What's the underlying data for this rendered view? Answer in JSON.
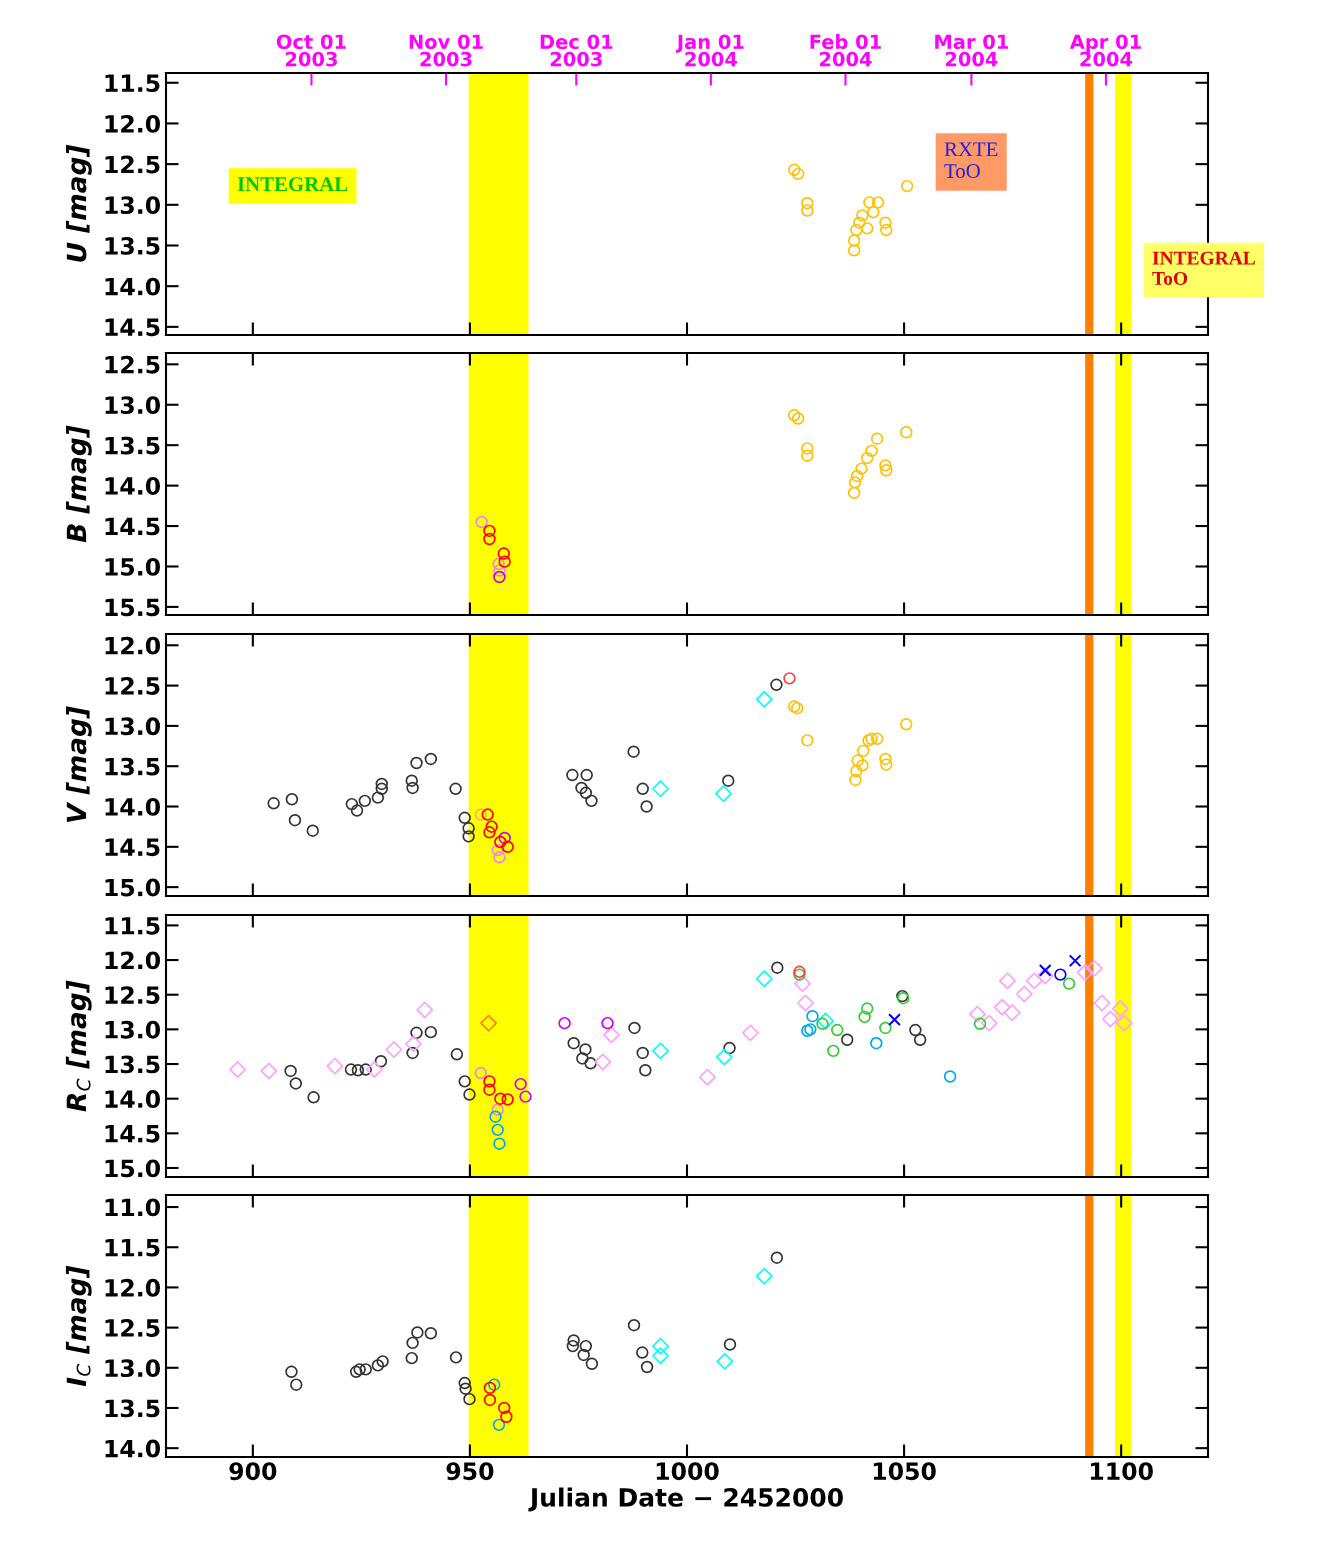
{
  "chart_data": [
    {
      "type": "scatter",
      "ylabel": "U [mag]",
      "xlim": [
        880,
        1120
      ],
      "xticks": [
        900,
        950,
        1000,
        1050,
        1100
      ],
      "ylim": [
        14.6,
        11.38
      ],
      "yticks": [
        11.5,
        {
          "value": 12,
          "label": "12.0"
        },
        12.5,
        {
          "value": 13,
          "label": "13.0"
        },
        13.5,
        {
          "value": 14,
          "label": "14.0"
        },
        14.5
      ],
      "tick_labels": "y",
      "x2lim": [
        "2003-08-28T12:00",
        "2004-04-24T12:00"
      ],
      "x2ticks": [
        {
          "value": "2003-10-01",
          "label": "Oct 01\n2003"
        },
        {
          "value": "2003-11-01",
          "label": "Nov 01\n2003"
        },
        {
          "value": "2003-12-01",
          "label": "Dec 01\n2003"
        },
        {
          "value": "2004-01-01",
          "label": "Jan 01\n2004"
        },
        {
          "value": "2004-02-01",
          "label": "Feb 01\n2004"
        },
        {
          "value": "2004-03-01",
          "label": "Mar 01\n2004"
        },
        {
          "value": "2004-04-01",
          "label": "Apr 01\n2004"
        }
      ],
      "annotations": [
        "INTEGRAL",
        "RXTE\nToO",
        "INTEGRAL\nToO"
      ],
      "bands": [
        {
          "axis": "x",
          "from": 949.7,
          "to": 963.5,
          "color": "#ffff00"
        },
        {
          "axis": "x",
          "from": 1091.7,
          "to": 1093.6,
          "color": "#ff7f00"
        },
        {
          "axis": "x",
          "from": 1098.6,
          "to": 1102.3,
          "color": "#ffff00"
        }
      ],
      "series": [
        {
          "color": "#ffc000",
          "marker": "circle",
          "x": [
            1024.7,
            1025.6,
            1027.7,
            1027.7,
            1038.5,
            1038.5,
            1039.0,
            1039.7,
            1040.4,
            1041.5,
            1042.0,
            1042.9,
            1044.0,
            1045.7,
            1045.9,
            1050.7
          ],
          "values": [
            12.57,
            12.62,
            12.98,
            13.07,
            13.56,
            13.44,
            13.31,
            13.22,
            13.13,
            13.29,
            12.97,
            13.09,
            12.97,
            13.22,
            13.31,
            12.77
          ]
        }
      ]
    },
    {
      "type": "scatter",
      "ylabel": "B [mag]",
      "xlim": [
        880,
        1120
      ],
      "xticks": [
        900,
        950,
        1000,
        1050,
        1100
      ],
      "ylim": [
        15.6,
        12.36
      ],
      "yticks": [
        12.5,
        {
          "value": 13,
          "label": "13.0"
        },
        13.5,
        {
          "value": 14,
          "label": "14.0"
        },
        14.5,
        {
          "value": 15,
          "label": "15.0"
        },
        15.5
      ],
      "tick_labels": "y",
      "bands": [
        {
          "axis": "x",
          "from": 949.7,
          "to": 963.5,
          "color": "#ffff00"
        },
        {
          "axis": "x",
          "from": 1091.7,
          "to": 1093.6,
          "color": "#ff7f00"
        },
        {
          "axis": "x",
          "from": 1098.6,
          "to": 1102.3,
          "color": "#ffff00"
        }
      ],
      "series": [
        {
          "color": "#ffc000",
          "marker": "circle",
          "x": [
            1024.7,
            1025.6,
            1027.7,
            1027.7,
            1038.5,
            1038.7,
            1039.2,
            1040.2,
            1041.5,
            1042.5,
            1043.8,
            1045.7,
            1045.9,
            1050.5
          ],
          "values": [
            13.13,
            13.17,
            13.54,
            13.63,
            14.09,
            13.96,
            13.88,
            13.79,
            13.66,
            13.57,
            13.42,
            13.75,
            13.81,
            13.34
          ]
        },
        {
          "color": "#ee82ee",
          "marker": "circle",
          "x": [
            952.7,
            956.6,
            956.8
          ],
          "values": [
            14.45,
            14.97,
            15.05
          ]
        },
        {
          "color": "#ff0000",
          "marker": "circle",
          "x": [
            954.5,
            954.5,
            957.8,
            958.0
          ],
          "values": [
            14.56,
            14.66,
            14.84,
            14.94
          ]
        },
        {
          "color": "#cc00cc",
          "marker": "circle",
          "x": [
            956.8
          ],
          "values": [
            15.13
          ]
        }
      ]
    },
    {
      "type": "scatter",
      "ylabel": "V [mag]",
      "xlim": [
        880,
        1120
      ],
      "xticks": [
        900,
        950,
        1000,
        1050,
        1100
      ],
      "ylim": [
        15.11,
        11.86
      ],
      "yticks": [
        {
          "value": 12,
          "label": "12.0"
        },
        12.5,
        {
          "value": 13,
          "label": "13.0"
        },
        13.5,
        {
          "value": 14,
          "label": "14.0"
        },
        14.5,
        {
          "value": 15,
          "label": "15.0"
        }
      ],
      "tick_labels": "y",
      "bands": [
        {
          "axis": "x",
          "from": 949.7,
          "to": 963.5,
          "color": "#ffff00"
        },
        {
          "axis": "x",
          "from": 1091.7,
          "to": 1093.6,
          "color": "#ff7f00"
        },
        {
          "axis": "x",
          "from": 1098.6,
          "to": 1102.3,
          "color": "#ffff00"
        }
      ],
      "series": [
        {
          "color": "#333333",
          "marker": "circle",
          "x": [
            904.8,
            909.0,
            909.7,
            913.8,
            922.8,
            924.0,
            925.8,
            928.8,
            929.7,
            929.7,
            936.6,
            936.8,
            937.7,
            941.0,
            946.7,
            948.8,
            949.7,
            949.7,
            973.6,
            976.9,
            975.7,
            976.7,
            978.0,
            987.7,
            989.8,
            990.7,
            1009.5,
            1020.6
          ],
          "values": [
            13.96,
            13.91,
            14.17,
            14.3,
            13.97,
            14.05,
            13.93,
            13.89,
            13.78,
            13.72,
            13.68,
            13.77,
            13.46,
            13.41,
            13.78,
            14.14,
            14.37,
            14.27,
            13.61,
            13.61,
            13.77,
            13.83,
            13.93,
            13.32,
            13.78,
            14.0,
            13.68,
            12.49
          ]
        },
        {
          "color": "#00ffff",
          "marker": "diamond",
          "x": [
            993.9,
            1008.4,
            1017.8
          ],
          "values": [
            13.78,
            13.84,
            12.67
          ]
        },
        {
          "color": "#ff4040",
          "marker": "circle",
          "x": [
            1023.6
          ],
          "values": [
            12.41
          ]
        },
        {
          "color": "#ffc000",
          "marker": "circle",
          "x": [
            1024.7,
            1025.4,
            1027.7,
            1038.8,
            1039.0,
            1039.3,
            1040.4,
            1040.6,
            1041.8,
            1042.5,
            1043.8,
            1045.7,
            1045.9,
            1050.5
          ],
          "values": [
            12.76,
            12.78,
            13.18,
            13.67,
            13.56,
            13.43,
            13.49,
            13.31,
            13.18,
            13.16,
            13.16,
            13.41,
            13.48,
            12.98
          ]
        },
        {
          "color": "#ffaa80",
          "marker": "circle",
          "x": [
            952.5
          ],
          "values": [
            14.1
          ]
        },
        {
          "color": "#ee82ee",
          "marker": "circle",
          "x": [
            956.4,
            956.8
          ],
          "values": [
            14.54,
            14.63
          ]
        },
        {
          "color": "#cc00ff",
          "marker": "circle",
          "x": [
            958.0
          ],
          "values": [
            14.39
          ]
        },
        {
          "color": "#ff0000",
          "marker": "circle",
          "x": [
            954.1,
            955.0,
            954.5,
            957.0,
            958.7
          ],
          "values": [
            14.1,
            14.25,
            14.32,
            14.44,
            14.5
          ]
        }
      ]
    },
    {
      "type": "scatter",
      "ylabel": "R$_{C}$ [mag]",
      "xlim": [
        880,
        1120
      ],
      "xticks": [
        900,
        950,
        1000,
        1050,
        1100
      ],
      "ylim": [
        15.13,
        11.35
      ],
      "yticks": [
        11.5,
        {
          "value": 12,
          "label": "12.0"
        },
        12.5,
        {
          "value": 13,
          "label": "13.0"
        },
        13.5,
        {
          "value": 14,
          "label": "14.0"
        },
        14.5,
        {
          "value": 15,
          "label": "15.0"
        }
      ],
      "tick_labels": "y",
      "bands": [
        {
          "axis": "x",
          "from": 949.7,
          "to": 963.5,
          "color": "#ffff00"
        },
        {
          "axis": "x",
          "from": 1091.7,
          "to": 1093.6,
          "color": "#ff7f00"
        },
        {
          "axis": "x",
          "from": 1098.6,
          "to": 1102.3,
          "color": "#ffff00"
        }
      ],
      "series": [
        {
          "color": "#333333",
          "marker": "circle",
          "x": [
            908.7,
            909.9,
            914.0,
            922.6,
            924.2,
            926.0,
            929.5,
            936.8,
            937.7,
            941.0,
            947.0,
            948.8,
            949.9,
            973.9,
            975.9,
            976.6,
            977.8,
            987.9,
            989.8,
            990.4,
            1009.8,
            1020.8,
            1036.9,
            1049.6,
            1052.6,
            1053.7
          ],
          "values": [
            13.6,
            13.78,
            13.98,
            13.58,
            13.59,
            13.58,
            13.46,
            13.34,
            13.05,
            13.04,
            13.36,
            13.75,
            13.94,
            13.2,
            13.42,
            13.29,
            13.49,
            12.98,
            13.34,
            13.59,
            13.27,
            12.11,
            13.15,
            12.52,
            13.01,
            13.15
          ]
        },
        {
          "color": "#ffa0ff",
          "marker": "diamond",
          "x": [
            896.5,
            903.7,
            918.9,
            928.0,
            932.5,
            937.0,
            939.6,
            980.6,
            982.6,
            1004.7,
            1014.6,
            1026.6,
            1027.3,
            1066.9,
            1069.6,
            1072.6,
            1073.8,
            1074.9,
            1077.7,
            1080.0,
            1082.5,
            1091.7,
            1093.8,
            1095.6,
            1097.5,
            1099.8,
            1100.7
          ],
          "values": [
            13.58,
            13.6,
            13.53,
            13.58,
            13.29,
            13.21,
            12.72,
            13.47,
            13.08,
            13.69,
            13.05,
            12.34,
            12.62,
            12.78,
            12.91,
            12.68,
            12.3,
            12.76,
            12.49,
            12.3,
            12.23,
            12.18,
            12.12,
            12.62,
            12.85,
            12.7,
            12.91
          ]
        },
        {
          "color": "#00ffff",
          "marker": "diamond",
          "x": [
            993.9,
            1008.6,
            1017.8,
            1031.9
          ],
          "values": [
            13.31,
            13.4,
            12.27,
            12.88
          ]
        },
        {
          "color": "#33cc33",
          "marker": "circle",
          "x": [
            1025.9,
            1031.2,
            1034.6,
            1033.7,
            1040.9,
            1041.5,
            1045.7,
            1049.8,
            1067.5,
            1088.0
          ],
          "values": [
            12.21,
            12.92,
            13.01,
            13.31,
            12.82,
            12.7,
            12.98,
            12.55,
            12.92,
            12.34
          ]
        },
        {
          "color": "#ff4040",
          "marker": "circle",
          "x": [
            1025.9
          ],
          "values": [
            12.17
          ]
        },
        {
          "color": "#ff8000",
          "marker": "diamond",
          "x": [
            954.3
          ],
          "values": [
            12.91
          ]
        },
        {
          "color": "#ee82ee",
          "marker": "circle",
          "x": [
            952.5,
            956.4
          ],
          "values": [
            13.63,
            14.16
          ]
        },
        {
          "color": "#ff0000",
          "marker": "circle",
          "x": [
            954.5,
            954.5,
            957.0,
            958.7
          ],
          "values": [
            13.75,
            13.87,
            14.0,
            14.01
          ]
        },
        {
          "color": "#00a8f0",
          "marker": "circle",
          "x": [
            955.9,
            956.4,
            956.8,
            1028.9,
            1028.4,
            1027.7,
            1043.6,
            1060.6
          ],
          "values": [
            14.26,
            14.45,
            14.65,
            12.81,
            13.0,
            13.02,
            13.2,
            13.68
          ]
        },
        {
          "color": "#cc00ff",
          "marker": "circle",
          "x": [
            961.7,
            962.8,
            971.8,
            981.7
          ],
          "values": [
            13.79,
            13.97,
            12.91,
            12.91
          ]
        },
        {
          "color": "#0000ff",
          "marker": "cross",
          "x": [
            1047.8,
            1082.5,
            1089.4
          ],
          "values": [
            12.86,
            12.15,
            12.01
          ]
        },
        {
          "color": "#0000ff",
          "marker": "circle",
          "x": [
            1086.0
          ],
          "values": [
            12.21
          ]
        }
      ]
    },
    {
      "type": "scatter",
      "ylabel": "I$_{C}$ [mag]",
      "xlabel": "Julian Date − 2452000",
      "xlim": [
        880,
        1120
      ],
      "xticks": [
        900,
        950,
        1000,
        1050,
        1100
      ],
      "ylim": [
        14.11,
        10.85
      ],
      "yticks": [
        {
          "value": 11,
          "label": "11.0"
        },
        11.5,
        {
          "value": 12,
          "label": "12.0"
        },
        12.5,
        {
          "value": 13,
          "label": "13.0"
        },
        13.5,
        {
          "value": 14,
          "label": "14.0"
        }
      ],
      "bands": [
        {
          "axis": "x",
          "from": 949.7,
          "to": 963.5,
          "color": "#ffff00"
        },
        {
          "axis": "x",
          "from": 1091.7,
          "to": 1093.6,
          "color": "#ff7f00"
        },
        {
          "axis": "x",
          "from": 1098.6,
          "to": 1102.3,
          "color": "#ffff00"
        }
      ],
      "series": [
        {
          "color": "#333333",
          "marker": "circle",
          "x": [
            908.9,
            910.0,
            923.8,
            924.6,
            926.0,
            928.8,
            929.9,
            936.6,
            936.8,
            937.9,
            941.0,
            946.8,
            948.8,
            949.0,
            949.9,
            973.9,
            973.7,
            976.7,
            976.2,
            978.1,
            987.8,
            989.7,
            990.8,
            1009.9,
            1020.7
          ],
          "values": [
            13.05,
            13.21,
            13.05,
            13.02,
            13.02,
            12.97,
            12.92,
            12.88,
            12.69,
            12.56,
            12.57,
            12.87,
            13.19,
            13.26,
            13.39,
            12.66,
            12.73,
            12.73,
            12.84,
            12.95,
            12.47,
            12.81,
            12.99,
            12.71,
            11.63
          ]
        },
        {
          "color": "#00ffff",
          "marker": "diamond",
          "x": [
            993.9,
            993.9,
            1008.7,
            1017.8
          ],
          "values": [
            12.73,
            12.85,
            12.92,
            11.86
          ]
        },
        {
          "color": "#00a8f0",
          "marker": "circle",
          "x": [
            955.6,
            956.7
          ],
          "values": [
            13.21,
            13.71
          ]
        },
        {
          "color": "#ff0000",
          "marker": "circle",
          "x": [
            954.6,
            954.6,
            957.9,
            958.4
          ],
          "values": [
            13.25,
            13.4,
            13.5,
            13.61
          ]
        }
      ]
    }
  ]
}
